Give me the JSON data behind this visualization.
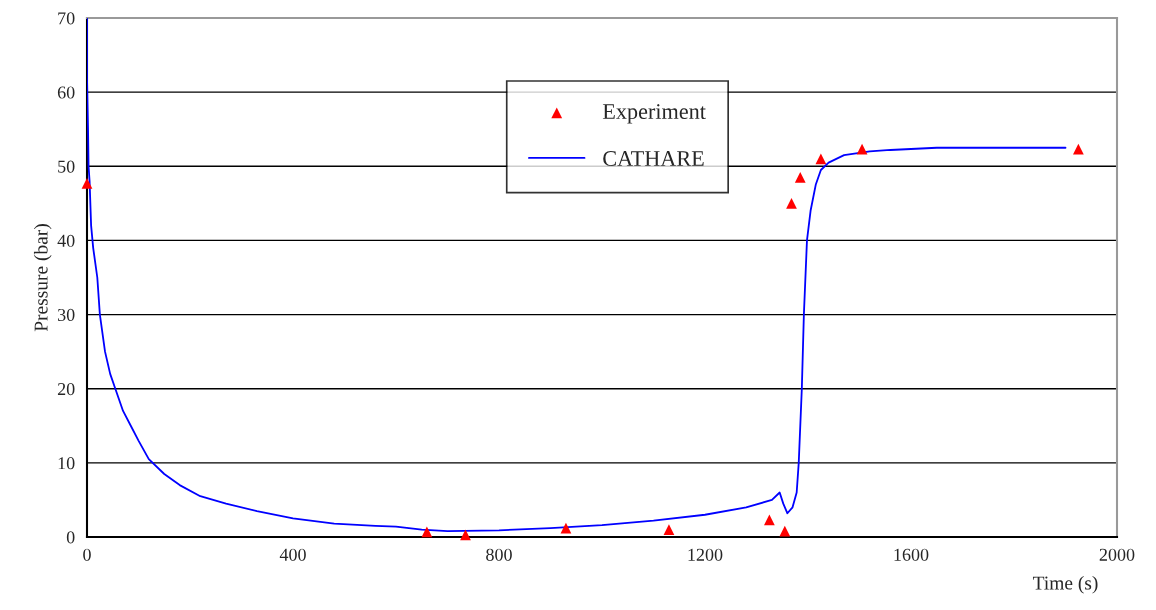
{
  "chart_data": {
    "type": "line",
    "xlabel": "Time (s)",
    "ylabel": "Pressure (bar)",
    "xlim": [
      0,
      2000
    ],
    "ylim": [
      0,
      70
    ],
    "xticks": [
      0,
      400,
      800,
      1200,
      1600,
      2000
    ],
    "yticks": [
      0,
      10,
      20,
      30,
      40,
      50,
      60,
      70
    ],
    "grid": "y",
    "legend": "top",
    "series": [
      {
        "name": "Experiment",
        "type": "scatter",
        "marker": "triangle",
        "color": "#ff0000",
        "x": [
          0,
          660,
          735,
          930,
          1130,
          1325,
          1355,
          1368,
          1385,
          1425,
          1505,
          1925
        ],
        "values": [
          47.7,
          0.7,
          0.3,
          1.2,
          1.0,
          2.3,
          0.8,
          45,
          48.5,
          51,
          52.3,
          52.3
        ]
      },
      {
        "name": "CATHARE",
        "color": "#0000ff",
        "x": [
          0,
          0,
          2,
          3,
          5,
          8,
          12,
          20,
          25,
          35,
          45,
          55,
          70,
          85,
          100,
          120,
          150,
          180,
          220,
          270,
          330,
          400,
          480,
          560,
          600,
          650,
          700,
          800,
          900,
          1000,
          1100,
          1200,
          1280,
          1330,
          1345,
          1352,
          1360,
          1370,
          1378,
          1382,
          1388,
          1392,
          1398,
          1405,
          1415,
          1425,
          1440,
          1470,
          1520,
          1560,
          1650,
          1900
        ],
        "values": [
          70,
          62,
          55,
          50,
          48,
          42,
          39,
          35,
          30,
          25,
          22,
          20,
          17,
          15,
          13,
          10.5,
          8.5,
          7,
          5.5,
          4.5,
          3.5,
          2.5,
          1.8,
          1.5,
          1.4,
          1,
          0.8,
          0.9,
          1.2,
          1.6,
          2.2,
          3,
          4,
          5,
          6,
          4.5,
          3.2,
          4,
          6,
          10,
          20,
          30,
          40,
          44,
          47.5,
          49.5,
          50.5,
          51.5,
          52,
          52.2,
          52.5,
          52.5
        ]
      }
    ]
  }
}
